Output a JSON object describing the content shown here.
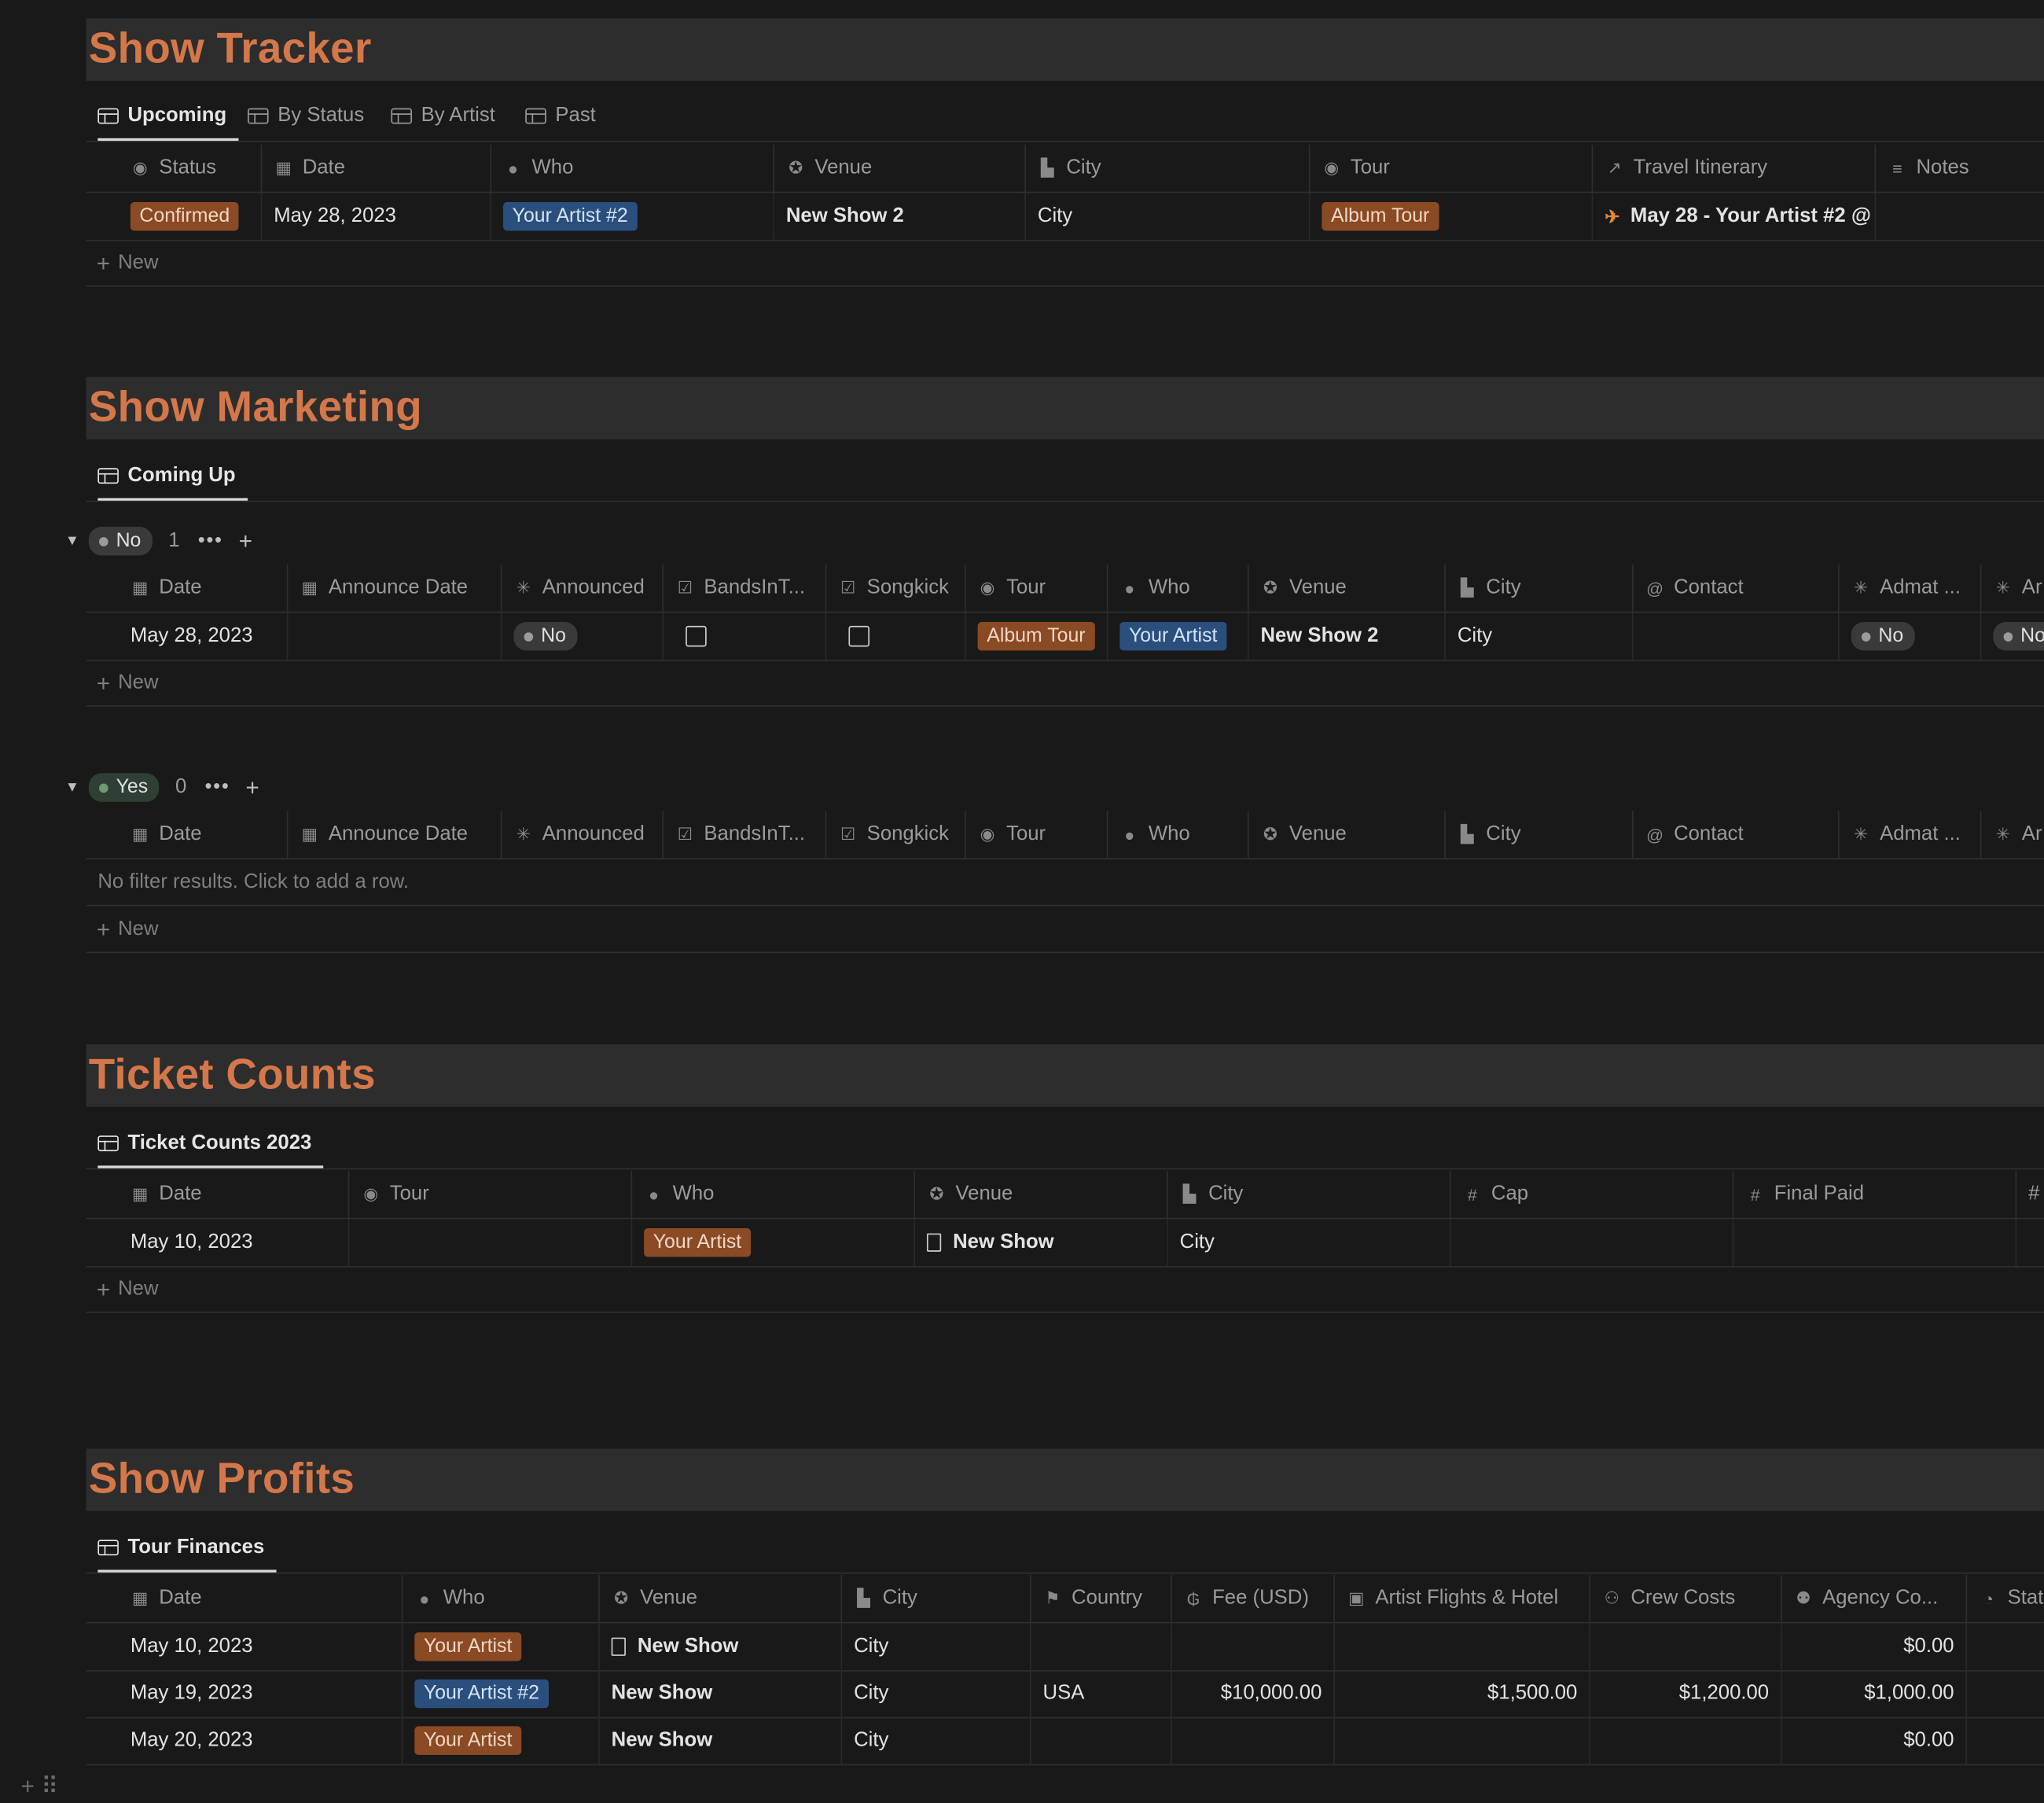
{
  "sections": {
    "tracker": {
      "title": "Show Tracker",
      "tabs": [
        "Upcoming",
        "By Status",
        "By Artist",
        "Past"
      ],
      "columns": [
        "Status",
        "Date",
        "Who",
        "Venue",
        "City",
        "Tour",
        "Travel Itinerary",
        "Notes"
      ],
      "row": {
        "status": "Confirmed",
        "date": "May 28, 2023",
        "who": "Your Artist #2",
        "venue": "New Show 2",
        "city": "City",
        "tour": "Album Tour",
        "itinerary": "May 28 - Your Artist #2 @"
      },
      "new_label": "New"
    },
    "marketing": {
      "title": "Show Marketing",
      "tab": "Coming Up",
      "columns": [
        "Date",
        "Announce Date",
        "Announced",
        "BandsInT...",
        "Songkick",
        "Tour",
        "Who",
        "Venue",
        "City",
        "Contact",
        "Admat ...",
        "Ar"
      ],
      "group_no": {
        "label": "No",
        "count": "1",
        "row": {
          "date": "May 28, 2023",
          "announced": "No",
          "tour": "Album Tour",
          "who": "Your Artist",
          "venue": "New Show 2",
          "city": "City",
          "admat": "No",
          "last": "No"
        }
      },
      "group_yes": {
        "label": "Yes",
        "count": "0",
        "empty_text": "No filter results. Click to add a row."
      },
      "new_label": "New"
    },
    "tickets": {
      "title": "Ticket Counts",
      "tab": "Ticket Counts 2023",
      "columns": [
        "Date",
        "Tour",
        "Who",
        "Venue",
        "City",
        "Cap",
        "Final Paid",
        "#"
      ],
      "row": {
        "date": "May 10, 2023",
        "who": "Your Artist",
        "venue": "New Show",
        "city": "City"
      },
      "new_label": "New"
    },
    "profits": {
      "title": "Show Profits",
      "tab": "Tour Finances",
      "columns": [
        "Date",
        "Who",
        "Venue",
        "City",
        "Country",
        "Fee (USD)",
        "Artist Flights & Hotel",
        "Crew Costs",
        "Agency Co...",
        "Stat"
      ],
      "rows": [
        {
          "date": "May 10, 2023",
          "who": "Your Artist",
          "who_color": "orange",
          "venue": "New Show",
          "doc": true,
          "city": "City",
          "country": "",
          "fee": "",
          "flights": "",
          "crew": "",
          "agency": "$0.00"
        },
        {
          "date": "May 19, 2023",
          "who": "Your Artist #2",
          "who_color": "blue",
          "venue": "New Show",
          "doc": false,
          "city": "City",
          "country": "USA",
          "fee": "$10,000.00",
          "flights": "$1,500.00",
          "crew": "$1,200.00",
          "agency": "$1,000.00"
        },
        {
          "date": "May 20, 2023",
          "who": "Your Artist",
          "who_color": "orange",
          "venue": "New Show",
          "doc": false,
          "city": "City",
          "country": "",
          "fee": "",
          "flights": "",
          "crew": "",
          "agency": "$0.00"
        }
      ]
    }
  },
  "colors": {
    "background": "#191919",
    "banner": "#2d2d2d",
    "heading_accent": "#d4774a",
    "tag_orange": "#8a4a23",
    "tag_blue": "#2b4f7d"
  }
}
